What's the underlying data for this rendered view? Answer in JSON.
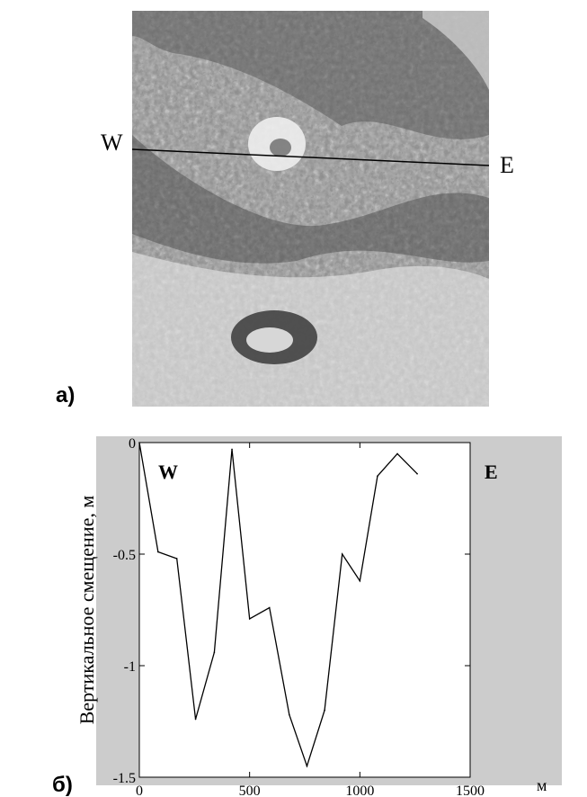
{
  "panel_a": {
    "label": "а)",
    "line_start_label": "W",
    "line_end_label": "E"
  },
  "panel_b": {
    "label": "б)"
  },
  "chart_data": {
    "type": "line",
    "title": "",
    "xlabel": "м",
    "ylabel": "Вертикальное смещение, м",
    "xlim": [
      0,
      1500
    ],
    "ylim": [
      -1.5,
      0
    ],
    "xticks": [
      0,
      500,
      1000,
      1500
    ],
    "xtick_labels": [
      "0",
      "500",
      "1000",
      "1500"
    ],
    "yticks": [
      0,
      -0.5,
      -1,
      -1.5
    ],
    "ytick_labels": [
      "0",
      "-0.5",
      "-1",
      "-1.5"
    ],
    "annotations": [
      "W",
      "E"
    ],
    "grid": false,
    "series": [
      {
        "x": [
          0,
          85,
          170,
          255,
          340,
          420,
          500,
          590,
          680,
          760,
          840,
          920,
          1000,
          1080,
          1170,
          1260
        ],
        "y": [
          0,
          -0.49,
          -0.52,
          -1.24,
          -0.94,
          -0.03,
          -0.79,
          -0.74,
          -1.22,
          -1.45,
          -1.2,
          -0.5,
          -0.62,
          -0.15,
          -0.05,
          -0.14
        ]
      }
    ]
  }
}
